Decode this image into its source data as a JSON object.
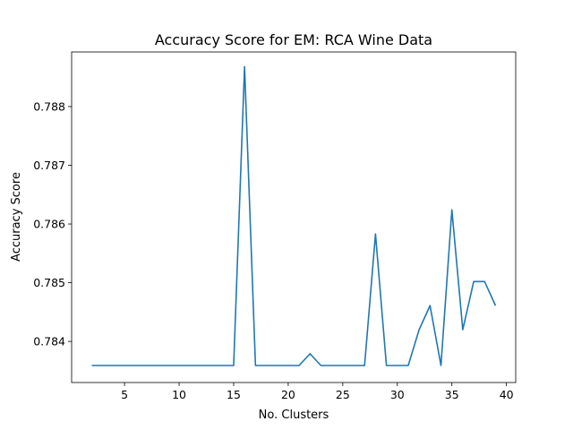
{
  "chart_data": {
    "type": "line",
    "title": "Accuracy Score for EM: RCA Wine Data",
    "xlabel": "No. Clusters",
    "ylabel": "Accuracy Score",
    "xlim": [
      0.15,
      40.85
    ],
    "ylim": [
      0.7833,
      0.78893
    ],
    "xticks": [
      5,
      10,
      15,
      20,
      25,
      30,
      35,
      40
    ],
    "xtick_labels": [
      "5",
      "10",
      "15",
      "20",
      "25",
      "30",
      "35",
      "40"
    ],
    "yticks": [
      0.784,
      0.785,
      0.786,
      0.787,
      0.788
    ],
    "ytick_labels": [
      "0.784",
      "0.785",
      "0.786",
      "0.787",
      "0.788"
    ],
    "grid": false,
    "line_color": "#1f77b4",
    "series": [
      {
        "x": [
          2,
          3,
          4,
          5,
          6,
          7,
          8,
          9,
          10,
          11,
          12,
          13,
          14,
          15,
          16,
          17,
          18,
          19,
          20,
          21,
          22,
          23,
          24,
          25,
          26,
          27,
          28,
          29,
          30,
          31,
          32,
          33,
          34,
          35,
          36,
          37,
          38,
          39
        ],
        "y": [
          0.78359,
          0.78359,
          0.78359,
          0.78359,
          0.78359,
          0.78359,
          0.78359,
          0.78359,
          0.78359,
          0.78359,
          0.78359,
          0.78359,
          0.78359,
          0.78359,
          0.78868,
          0.78359,
          0.78359,
          0.78359,
          0.78359,
          0.78359,
          0.78379,
          0.78359,
          0.78359,
          0.78359,
          0.78359,
          0.78359,
          0.78583,
          0.78359,
          0.78359,
          0.78359,
          0.7842,
          0.78461,
          0.78359,
          0.78624,
          0.7842,
          0.78502,
          0.78502,
          0.78461
        ]
      }
    ]
  }
}
